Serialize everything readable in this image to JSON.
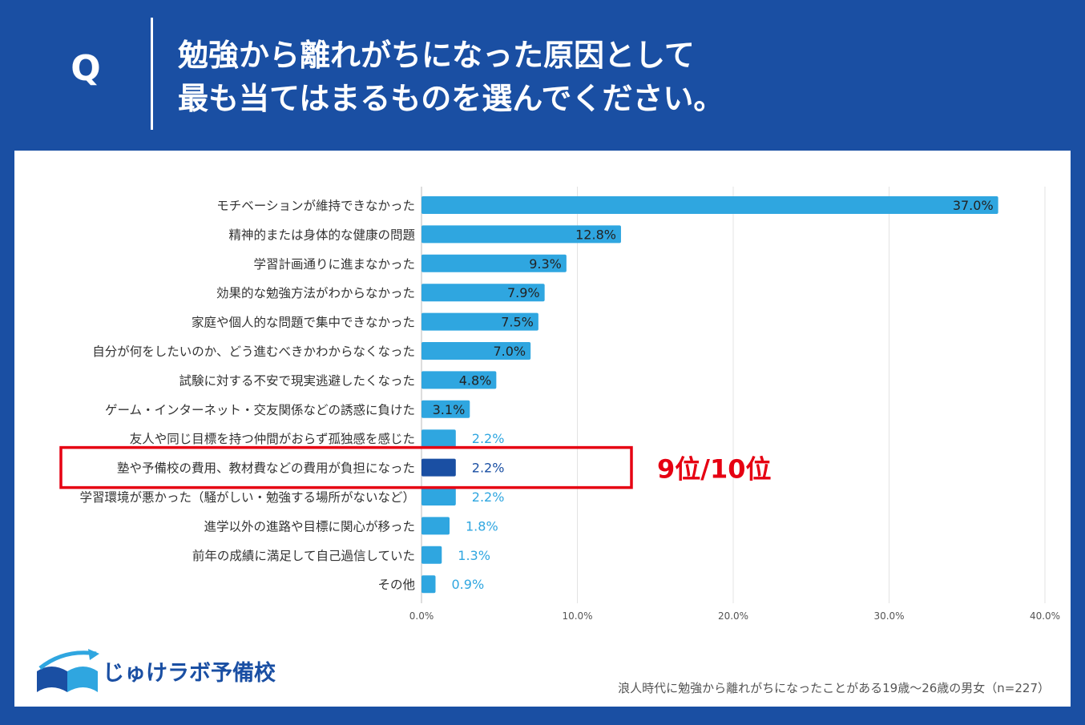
{
  "header": {
    "q_label": "Q",
    "question_line1": "勉強から離れがちになった原因として",
    "question_line2": "最も当てはまるものを選んでください。"
  },
  "chart_data": {
    "type": "bar",
    "orientation": "horizontal",
    "categories": [
      "モチベーションが維持できなかった",
      "精神的または身体的な健康の問題",
      "学習計画通りに進まなかった",
      "効果的な勉強方法がわからなかった",
      "家庭や個人的な問題で集中できなかった",
      "自分が何をしたいのか、どう進むべきかわからなくなった",
      "試験に対する不安で現実逃避したくなった",
      "ゲーム・インターネット・交友関係などの誘惑に負けた",
      "友人や同じ目標を持つ仲間がおらず孤独感を感じた",
      "塾や予備校の費用、教材費などの費用が負担になった",
      "学習環境が悪かった（騒がしい・勉強する場所がないなど）",
      "進学以外の進路や目標に関心が移った",
      "前年の成績に満足して自己過信していた",
      "その他"
    ],
    "values": [
      37.0,
      12.8,
      9.3,
      7.9,
      7.5,
      7.0,
      4.8,
      3.1,
      2.2,
      2.2,
      2.2,
      1.8,
      1.3,
      0.9
    ],
    "value_labels": [
      "37.0%",
      "12.8%",
      "9.3%",
      "7.9%",
      "7.5%",
      "7.0%",
      "4.8%",
      "3.1%",
      "2.2%",
      "2.2%",
      "2.2%",
      "1.8%",
      "1.3%",
      "0.9%"
    ],
    "x_ticks": [
      "0.0%",
      "10.0%",
      "20.0%",
      "30.0%",
      "40.0%"
    ],
    "xlim": [
      0,
      40
    ],
    "grid": true,
    "highlight_index": 9,
    "colors": {
      "bar": "#2fa6e0",
      "highlight": "#1a4fa3",
      "label_inside": "#222222",
      "label_outside": "#2fa6e0",
      "annotation": "#e60012"
    }
  },
  "annotation": {
    "text": "9位/10位"
  },
  "footer": {
    "logo_text": "じゅけラボ予備校",
    "note": "浪人時代に勉強から離れがちになったことがある19歳〜26歳の男女（n=227）"
  }
}
